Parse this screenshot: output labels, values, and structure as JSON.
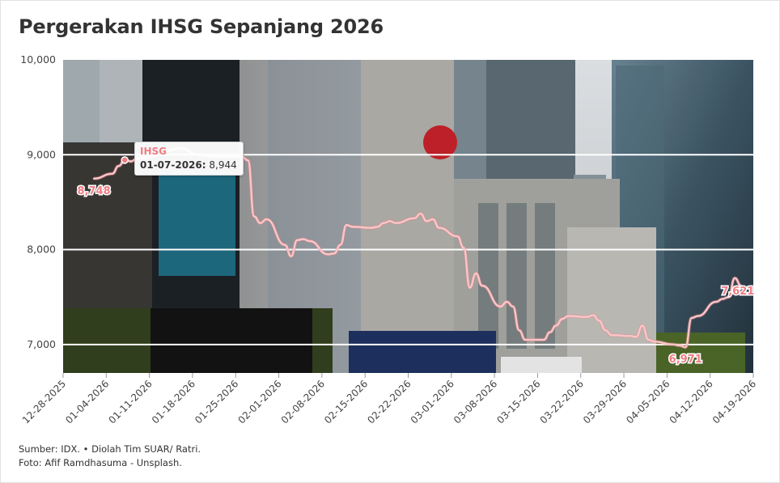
{
  "title": "Pergerakan IHSG Sepanjang 2026",
  "footer": {
    "source": "Sumber: IDX. • Diolah Tim SUAR/ Ratri.",
    "photo": "Foto: Afif Ramdhasuma - Unsplash."
  },
  "tooltip": {
    "series": "IHSG",
    "date": "01-07-2026:",
    "value": "8,944"
  },
  "colors": {
    "line": "#fbc4c7",
    "label": "#f07d84",
    "grid": "#ffffff",
    "sky": "#dfe3e6"
  },
  "background_photo": "jakarta-office-buildings-with-idx-indonesia-stock-exchange-sign",
  "chart_data": {
    "type": "line",
    "title": "Pergerakan IHSG Sepanjang 2026",
    "xlabel": "",
    "ylabel": "",
    "series": [
      {
        "name": "IHSG",
        "x": [
          "2026-01-02",
          "2026-01-05",
          "2026-01-06",
          "2026-01-07",
          "2026-01-08",
          "2026-01-09",
          "2026-01-12",
          "2026-01-13",
          "2026-01-14",
          "2026-01-15",
          "2026-01-16",
          "2026-01-19",
          "2026-01-20",
          "2026-01-21",
          "2026-01-22",
          "2026-01-23",
          "2026-01-26",
          "2026-01-27",
          "2026-01-28",
          "2026-01-29",
          "2026-01-30",
          "2026-02-02",
          "2026-02-03",
          "2026-02-04",
          "2026-02-05",
          "2026-02-06",
          "2026-02-09",
          "2026-02-10",
          "2026-02-11",
          "2026-02-12",
          "2026-02-13",
          "2026-02-16",
          "2026-02-17",
          "2026-02-18",
          "2026-02-19",
          "2026-02-20",
          "2026-02-23",
          "2026-02-24",
          "2026-02-25",
          "2026-02-26",
          "2026-02-27",
          "2026-03-02",
          "2026-03-03",
          "2026-03-04",
          "2026-03-05",
          "2026-03-06",
          "2026-03-09",
          "2026-03-10",
          "2026-03-11",
          "2026-03-12",
          "2026-03-13",
          "2026-03-16",
          "2026-03-17",
          "2026-03-18",
          "2026-03-19",
          "2026-03-20",
          "2026-03-23",
          "2026-03-24",
          "2026-03-25",
          "2026-03-26",
          "2026-03-27",
          "2026-03-30",
          "2026-03-31",
          "2026-04-01",
          "2026-04-02",
          "2026-04-03",
          "2026-04-06",
          "2026-04-07",
          "2026-04-08",
          "2026-04-09",
          "2026-04-10",
          "2026-04-13",
          "2026-04-14",
          "2026-04-15",
          "2026-04-16",
          "2026-04-17"
        ],
        "y": [
          8748,
          8800,
          8880,
          8944,
          8930,
          8960,
          8990,
          9010,
          9040,
          9060,
          9070,
          9000,
          8990,
          8980,
          8980,
          8980,
          8980,
          8940,
          8350,
          8280,
          8320,
          8050,
          7930,
          8100,
          8110,
          8090,
          7950,
          7960,
          8050,
          8260,
          8240,
          8230,
          8240,
          8280,
          8300,
          8280,
          8330,
          8380,
          8300,
          8320,
          8230,
          8140,
          8020,
          7600,
          7750,
          7620,
          7400,
          7450,
          7400,
          7150,
          7050,
          7050,
          7130,
          7200,
          7270,
          7300,
          7290,
          7310,
          7250,
          7150,
          7100,
          7090,
          7080,
          7200,
          7050,
          7030,
          7000,
          6990,
          6971,
          7280,
          7300,
          7450,
          7480,
          7500,
          7700,
          7621
        ]
      }
    ],
    "x_ticks": [
      "12-28-2025",
      "01-04-2026",
      "01-11-2026",
      "01-18-2026",
      "01-25-2026",
      "02-01-2026",
      "02-08-2026",
      "02-15-2026",
      "02-22-2026",
      "03-01-2026",
      "03-08-2026",
      "03-15-2026",
      "03-22-2026",
      "03-29-2026",
      "04-05-2026",
      "04-12-2026",
      "04-19-2026"
    ],
    "x_range": [
      "2025-12-28",
      "2026-04-19"
    ],
    "y_ticks": [
      7000,
      8000,
      9000,
      10000
    ],
    "y_tick_labels": [
      "7,000",
      "8,000",
      "9,000",
      "10,000"
    ],
    "ylim": [
      6700,
      10000
    ],
    "data_labels": [
      {
        "x": "2026-01-02",
        "text": "8,748"
      },
      {
        "x": "2026-04-08",
        "text": "6,971"
      },
      {
        "x": "2026-04-17",
        "text": "7,621"
      }
    ],
    "grid": true,
    "legend": "none"
  }
}
